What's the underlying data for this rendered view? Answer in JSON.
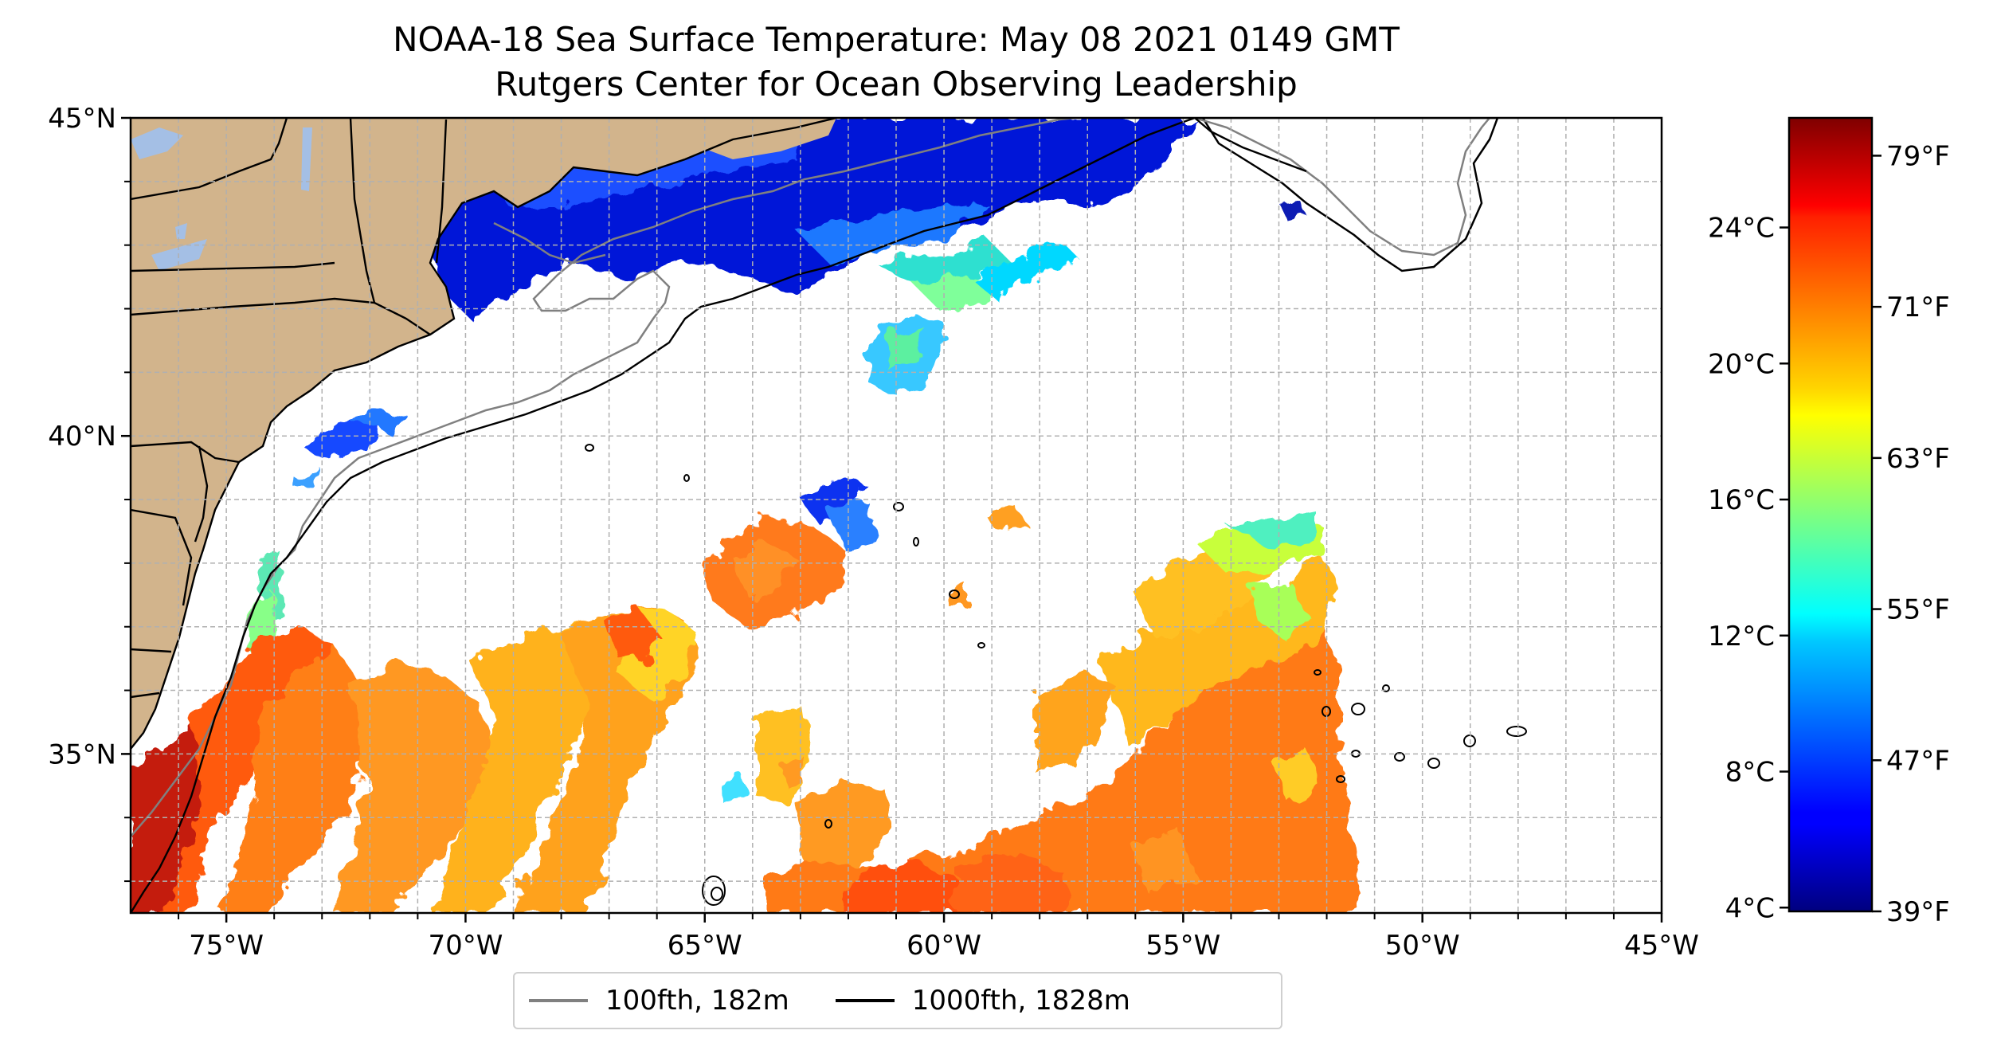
{
  "title": {
    "line1": "NOAA-18 Sea Surface Temperature: May 08 2021 0149 GMT",
    "line2": "Rutgers Center for Ocean Observing Leadership"
  },
  "map": {
    "extent": {
      "lon": [
        -77,
        -45
      ],
      "lat": [
        32.5,
        45
      ]
    },
    "lat_ticks": [
      {
        "value": 45,
        "label": "45°N"
      },
      {
        "value": 40,
        "label": "40°N"
      },
      {
        "value": 35,
        "label": "35°N"
      }
    ],
    "lon_ticks": [
      {
        "value": -75,
        "label": "75°W"
      },
      {
        "value": -70,
        "label": "70°W"
      },
      {
        "value": -65,
        "label": "65°W"
      },
      {
        "value": -60,
        "label": "60°W"
      },
      {
        "value": -55,
        "label": "55°W"
      },
      {
        "value": -50,
        "label": "50°W"
      },
      {
        "value": -45,
        "label": "45°W"
      }
    ],
    "gridlines": true,
    "land_color": "#d2b48c",
    "no_data_color": "#ffffff"
  },
  "colorbar": {
    "colormap": "jet",
    "range_f": [
      39,
      81
    ],
    "celsius_ticks": [
      {
        "value": 24,
        "label": "24°C"
      },
      {
        "value": 20,
        "label": "20°C"
      },
      {
        "value": 16,
        "label": "16°C"
      },
      {
        "value": 12,
        "label": "12°C"
      },
      {
        "value": 8,
        "label": "8°C"
      },
      {
        "value": 4,
        "label": "4°C"
      }
    ],
    "fahrenheit_ticks": [
      {
        "value": 79,
        "label": "79°F"
      },
      {
        "value": 71,
        "label": "71°F"
      },
      {
        "value": 63,
        "label": "63°F"
      },
      {
        "value": 55,
        "label": "55°F"
      },
      {
        "value": 47,
        "label": "47°F"
      },
      {
        "value": 39,
        "label": "39°F"
      }
    ]
  },
  "legend": {
    "items": [
      {
        "label": "100fth, 182m",
        "color": "#808080"
      },
      {
        "label": "1000fth, 1828m",
        "color": "#000000"
      }
    ]
  }
}
